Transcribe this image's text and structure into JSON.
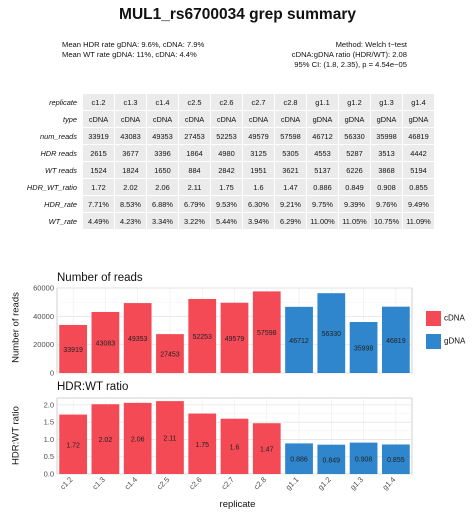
{
  "title": "MUL1_rs6700034 grep summary",
  "stats": {
    "mean_hdr": "Mean HDR rate gDNA: 9.6%,  cDNA: 7.9%",
    "mean_wt": "Mean WT rate gDNA: 11%,  cDNA: 4.4%",
    "method": "Method: Welch t−test",
    "ratio": "cDNA:gDNA ratio (HDR/WT): 2.08",
    "ci": "95% CI: (1.8, 2.35),   p = 4.54e−05"
  },
  "colors": {
    "cDNA": "#f44a56",
    "gDNA": "#2f86cc"
  },
  "table": {
    "row_labels": [
      "replicate",
      "type",
      "num_reads",
      "HDR reads",
      "WT reads",
      "HDR_WT_ratio",
      "HDR_rate",
      "WT_rate"
    ],
    "rows": [
      [
        "c1.2",
        "c1.3",
        "c1.4",
        "c2.5",
        "c2.6",
        "c2.7",
        "c2.8",
        "g1.1",
        "g1.2",
        "g1.3",
        "g1.4"
      ],
      [
        "cDNA",
        "cDNA",
        "cDNA",
        "cDNA",
        "cDNA",
        "cDNA",
        "cDNA",
        "gDNA",
        "gDNA",
        "gDNA",
        "gDNA"
      ],
      [
        "33919",
        "43083",
        "49353",
        "27453",
        "52253",
        "49579",
        "57598",
        "46712",
        "56330",
        "35998",
        "46819"
      ],
      [
        "2615",
        "3677",
        "3396",
        "1864",
        "4980",
        "3125",
        "5305",
        "4553",
        "5287",
        "3513",
        "4442"
      ],
      [
        "1524",
        "1824",
        "1650",
        "884",
        "2842",
        "1951",
        "3621",
        "5137",
        "6226",
        "3868",
        "5194"
      ],
      [
        "1.72",
        "2.02",
        "2.06",
        "2.11",
        "1.75",
        "1.6",
        "1.47",
        "0.886",
        "0.849",
        "0.908",
        "0.855"
      ],
      [
        "7.71%",
        "8.53%",
        "6.88%",
        "6.79%",
        "9.53%",
        "6.30%",
        "9.21%",
        "9.75%",
        "9.39%",
        "9.76%",
        "9.49%"
      ],
      [
        "4.49%",
        "4.23%",
        "3.34%",
        "3.22%",
        "5.44%",
        "3.94%",
        "6.29%",
        "11.00%",
        "11.05%",
        "10.75%",
        "11.09%"
      ]
    ]
  },
  "chart_data": [
    {
      "type": "bar",
      "title": "Number of reads",
      "xlabel": "",
      "ylabel": "Number of reads",
      "categories": [
        "c1.2",
        "c1.3",
        "c1.4",
        "c2.5",
        "c2.6",
        "c2.7",
        "c2.8",
        "g1.1",
        "g1.2",
        "g1.3",
        "g1.4"
      ],
      "values": [
        33919,
        43083,
        49353,
        27453,
        52253,
        49579,
        57598,
        46712,
        56330,
        35998,
        46819
      ],
      "groups": [
        "cDNA",
        "cDNA",
        "cDNA",
        "cDNA",
        "cDNA",
        "cDNA",
        "cDNA",
        "gDNA",
        "gDNA",
        "gDNA",
        "gDNA"
      ],
      "data_labels": [
        "33919",
        "43083",
        "49353",
        "27453",
        "52253",
        "49579",
        "57598",
        "46712",
        "56330",
        "35998",
        "46819"
      ],
      "ylim": [
        0,
        60000
      ],
      "yticks": [
        0,
        20000,
        40000,
        60000
      ],
      "ytick_labels": [
        "0",
        "20000",
        "40000",
        "60000"
      ],
      "show_xtick_labels": false,
      "grid": true,
      "legend": {
        "position": "right",
        "entries": [
          "cDNA",
          "gDNA"
        ]
      }
    },
    {
      "type": "bar",
      "title": "HDR:WT ratio",
      "xlabel": "replicate",
      "ylabel": "HDR:WT ratio",
      "categories": [
        "c1.2",
        "c1.3",
        "c1.4",
        "c2.5",
        "c2.6",
        "c2.7",
        "c2.8",
        "g1.1",
        "g1.2",
        "g1.3",
        "g1.4"
      ],
      "values": [
        1.72,
        2.02,
        2.06,
        2.11,
        1.75,
        1.6,
        1.47,
        0.886,
        0.849,
        0.908,
        0.855
      ],
      "groups": [
        "cDNA",
        "cDNA",
        "cDNA",
        "cDNA",
        "cDNA",
        "cDNA",
        "cDNA",
        "gDNA",
        "gDNA",
        "gDNA",
        "gDNA"
      ],
      "data_labels": [
        "1.72",
        "2.02",
        "2.06",
        "2.11",
        "1.75",
        "1.6",
        "1.47",
        "0.886",
        "0.849",
        "0.908",
        "0.855"
      ],
      "ylim": [
        0,
        2.2
      ],
      "yticks": [
        0,
        0.5,
        1.0,
        1.5,
        2.0
      ],
      "ytick_labels": [
        "0.0",
        "0.5",
        "1.0",
        "1.5",
        "2.0"
      ],
      "show_xtick_labels": true,
      "grid": true
    }
  ]
}
